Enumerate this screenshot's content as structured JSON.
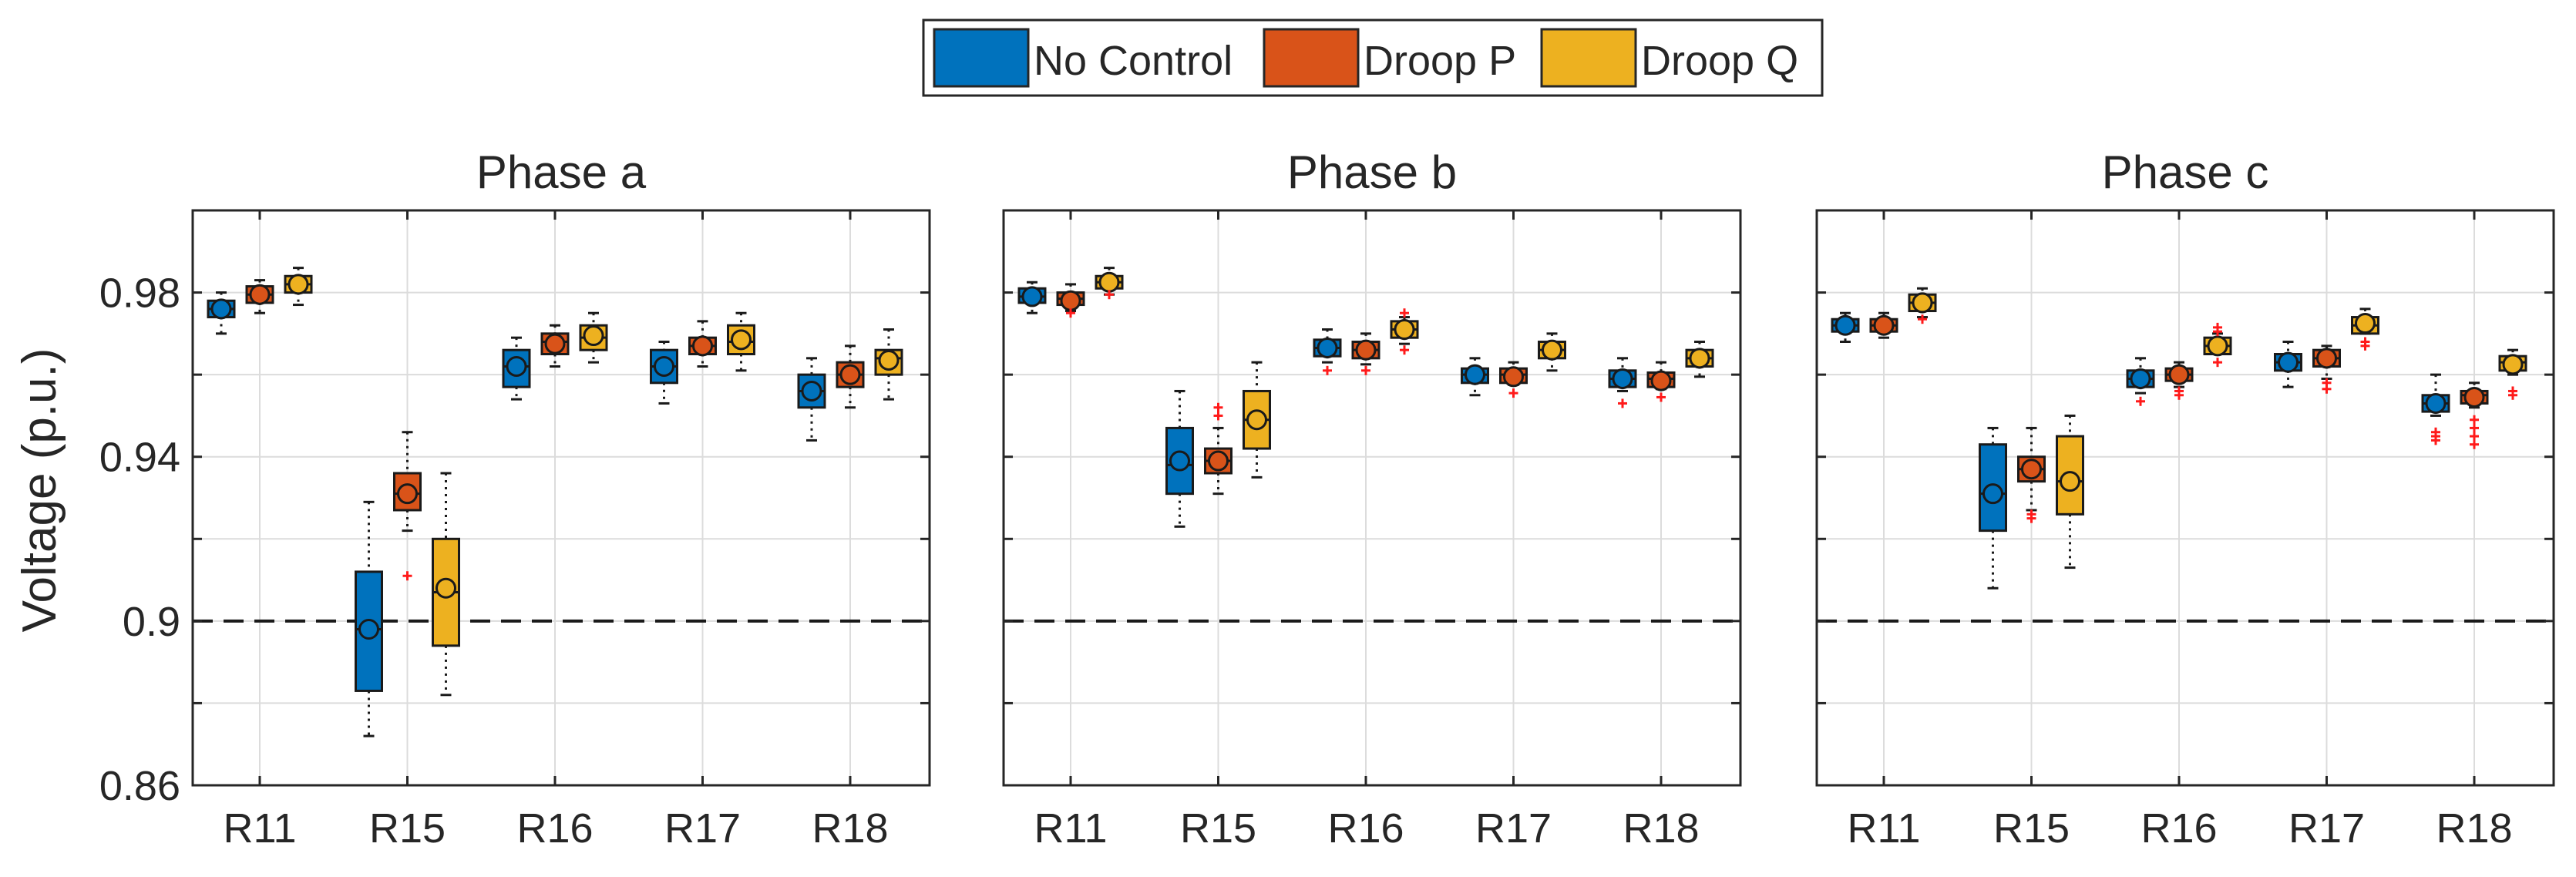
{
  "legend": [
    {
      "label": "No Control",
      "color": "#0072BD"
    },
    {
      "label": "Droop P",
      "color": "#D95319"
    },
    {
      "label": "Droop Q",
      "color": "#EDB120"
    }
  ],
  "threshold_value": 0.9,
  "chart_data": {
    "type": "boxplot",
    "ylabel": "Voltage (p.u.)",
    "ylim": [
      0.86,
      1.0
    ],
    "yticks": [
      0.86,
      0.9,
      0.94,
      0.98
    ],
    "yticklabels": [
      "0.86",
      "0.9",
      "0.94",
      "0.98"
    ],
    "categories": [
      "R11",
      "R15",
      "R16",
      "R17",
      "R18"
    ],
    "series_names": [
      "No Control",
      "Droop P",
      "Droop Q"
    ],
    "panels": [
      {
        "title": "Phase a",
        "boxes": [
          [
            {
              "wlo": 0.97,
              "q1": 0.974,
              "median": 0.976,
              "q3": 0.978,
              "whi": 0.98,
              "mean": 0.976,
              "outliers": []
            },
            {
              "wlo": 0.975,
              "q1": 0.9775,
              "median": 0.9795,
              "q3": 0.9815,
              "whi": 0.983,
              "mean": 0.9795,
              "outliers": []
            },
            {
              "wlo": 0.977,
              "q1": 0.98,
              "median": 0.982,
              "q3": 0.984,
              "whi": 0.986,
              "mean": 0.982,
              "outliers": []
            }
          ],
          [
            {
              "wlo": 0.872,
              "q1": 0.883,
              "median": 0.898,
              "q3": 0.912,
              "whi": 0.929,
              "mean": 0.898,
              "outliers": []
            },
            {
              "wlo": 0.922,
              "q1": 0.927,
              "median": 0.931,
              "q3": 0.936,
              "whi": 0.946,
              "mean": 0.931,
              "outliers": [
                0.911
              ]
            },
            {
              "wlo": 0.882,
              "q1": 0.894,
              "median": 0.907,
              "q3": 0.92,
              "whi": 0.936,
              "mean": 0.908,
              "outliers": []
            }
          ],
          [
            {
              "wlo": 0.954,
              "q1": 0.957,
              "median": 0.962,
              "q3": 0.966,
              "whi": 0.969,
              "mean": 0.962,
              "outliers": []
            },
            {
              "wlo": 0.962,
              "q1": 0.965,
              "median": 0.968,
              "q3": 0.97,
              "whi": 0.972,
              "mean": 0.9675,
              "outliers": []
            },
            {
              "wlo": 0.963,
              "q1": 0.966,
              "median": 0.969,
              "q3": 0.972,
              "whi": 0.975,
              "mean": 0.9695,
              "outliers": []
            }
          ],
          [
            {
              "wlo": 0.953,
              "q1": 0.958,
              "median": 0.962,
              "q3": 0.966,
              "whi": 0.968,
              "mean": 0.962,
              "outliers": []
            },
            {
              "wlo": 0.962,
              "q1": 0.965,
              "median": 0.967,
              "q3": 0.969,
              "whi": 0.973,
              "mean": 0.967,
              "outliers": []
            },
            {
              "wlo": 0.961,
              "q1": 0.965,
              "median": 0.968,
              "q3": 0.972,
              "whi": 0.975,
              "mean": 0.9685,
              "outliers": []
            }
          ],
          [
            {
              "wlo": 0.944,
              "q1": 0.952,
              "median": 0.956,
              "q3": 0.96,
              "whi": 0.964,
              "mean": 0.956,
              "outliers": []
            },
            {
              "wlo": 0.952,
              "q1": 0.957,
              "median": 0.96,
              "q3": 0.963,
              "whi": 0.967,
              "mean": 0.96,
              "outliers": []
            },
            {
              "wlo": 0.954,
              "q1": 0.96,
              "median": 0.964,
              "q3": 0.966,
              "whi": 0.971,
              "mean": 0.9635,
              "outliers": []
            }
          ]
        ]
      },
      {
        "title": "Phase b",
        "boxes": [
          [
            {
              "wlo": 0.975,
              "q1": 0.9775,
              "median": 0.979,
              "q3": 0.981,
              "whi": 0.9825,
              "mean": 0.979,
              "outliers": []
            },
            {
              "wlo": 0.9755,
              "q1": 0.977,
              "median": 0.9785,
              "q3": 0.98,
              "whi": 0.982,
              "mean": 0.978,
              "outliers": [
                0.975
              ]
            },
            {
              "wlo": 0.9795,
              "q1": 0.981,
              "median": 0.9825,
              "q3": 0.984,
              "whi": 0.986,
              "mean": 0.9825,
              "outliers": [
                0.9795
              ]
            }
          ],
          [
            {
              "wlo": 0.923,
              "q1": 0.931,
              "median": 0.938,
              "q3": 0.947,
              "whi": 0.956,
              "mean": 0.939,
              "outliers": []
            },
            {
              "wlo": 0.931,
              "q1": 0.936,
              "median": 0.939,
              "q3": 0.942,
              "whi": 0.947,
              "mean": 0.939,
              "outliers": [
                0.95,
                0.952
              ]
            },
            {
              "wlo": 0.935,
              "q1": 0.942,
              "median": 0.949,
              "q3": 0.956,
              "whi": 0.963,
              "mean": 0.949,
              "outliers": []
            }
          ],
          [
            {
              "wlo": 0.963,
              "q1": 0.9645,
              "median": 0.9665,
              "q3": 0.9685,
              "whi": 0.971,
              "mean": 0.9665,
              "outliers": [
                0.961
              ]
            },
            {
              "wlo": 0.9625,
              "q1": 0.964,
              "median": 0.966,
              "q3": 0.968,
              "whi": 0.97,
              "mean": 0.966,
              "outliers": [
                0.961
              ]
            },
            {
              "wlo": 0.9675,
              "q1": 0.969,
              "median": 0.971,
              "q3": 0.973,
              "whi": 0.974,
              "mean": 0.971,
              "outliers": [
                0.966,
                0.975
              ]
            }
          ],
          [
            {
              "wlo": 0.955,
              "q1": 0.958,
              "median": 0.96,
              "q3": 0.9615,
              "whi": 0.964,
              "mean": 0.96,
              "outliers": []
            },
            {
              "wlo": 0.9575,
              "q1": 0.958,
              "median": 0.96,
              "q3": 0.9615,
              "whi": 0.963,
              "mean": 0.9595,
              "outliers": [
                0.9555
              ]
            },
            {
              "wlo": 0.961,
              "q1": 0.964,
              "median": 0.966,
              "q3": 0.968,
              "whi": 0.97,
              "mean": 0.966,
              "outliers": []
            }
          ],
          [
            {
              "wlo": 0.956,
              "q1": 0.957,
              "median": 0.959,
              "q3": 0.961,
              "whi": 0.964,
              "mean": 0.959,
              "outliers": [
                0.953
              ]
            },
            {
              "wlo": 0.9565,
              "q1": 0.957,
              "median": 0.959,
              "q3": 0.9605,
              "whi": 0.963,
              "mean": 0.9585,
              "outliers": [
                0.9545
              ]
            },
            {
              "wlo": 0.9595,
              "q1": 0.962,
              "median": 0.964,
              "q3": 0.966,
              "whi": 0.968,
              "mean": 0.964,
              "outliers": []
            }
          ]
        ]
      },
      {
        "title": "Phase c",
        "boxes": [
          [
            {
              "wlo": 0.968,
              "q1": 0.9705,
              "median": 0.972,
              "q3": 0.9735,
              "whi": 0.975,
              "mean": 0.972,
              "outliers": []
            },
            {
              "wlo": 0.969,
              "q1": 0.9705,
              "median": 0.972,
              "q3": 0.9735,
              "whi": 0.975,
              "mean": 0.972,
              "outliers": []
            },
            {
              "wlo": 0.974,
              "q1": 0.9755,
              "median": 0.9775,
              "q3": 0.9795,
              "whi": 0.981,
              "mean": 0.9775,
              "outliers": [
                0.9735
              ]
            }
          ],
          [
            {
              "wlo": 0.908,
              "q1": 0.922,
              "median": 0.931,
              "q3": 0.943,
              "whi": 0.947,
              "mean": 0.931,
              "outliers": []
            },
            {
              "wlo": 0.927,
              "q1": 0.934,
              "median": 0.937,
              "q3": 0.94,
              "whi": 0.947,
              "mean": 0.937,
              "outliers": [
                0.925,
                0.926
              ]
            },
            {
              "wlo": 0.913,
              "q1": 0.926,
              "median": 0.934,
              "q3": 0.945,
              "whi": 0.95,
              "mean": 0.934,
              "outliers": []
            }
          ],
          [
            {
              "wlo": 0.9555,
              "q1": 0.957,
              "median": 0.959,
              "q3": 0.961,
              "whi": 0.964,
              "mean": 0.959,
              "outliers": [
                0.9535
              ]
            },
            {
              "wlo": 0.957,
              "q1": 0.9585,
              "median": 0.96,
              "q3": 0.9615,
              "whi": 0.963,
              "mean": 0.96,
              "outliers": [
                0.955,
                0.956
              ]
            },
            {
              "wlo": 0.965,
              "q1": 0.965,
              "median": 0.967,
              "q3": 0.969,
              "whi": 0.97,
              "mean": 0.967,
              "outliers": [
                0.963,
                0.9705,
                0.9715
              ]
            }
          ],
          [
            {
              "wlo": 0.957,
              "q1": 0.961,
              "median": 0.963,
              "q3": 0.965,
              "whi": 0.968,
              "mean": 0.963,
              "outliers": []
            },
            {
              "wlo": 0.959,
              "q1": 0.962,
              "median": 0.964,
              "q3": 0.966,
              "whi": 0.967,
              "mean": 0.964,
              "outliers": [
                0.9565,
                0.958
              ]
            },
            {
              "wlo": 0.97,
              "q1": 0.97,
              "median": 0.972,
              "q3": 0.974,
              "whi": 0.976,
              "mean": 0.9725,
              "outliers": [
                0.967,
                0.968
              ]
            }
          ],
          [
            {
              "wlo": 0.95,
              "q1": 0.951,
              "median": 0.953,
              "q3": 0.955,
              "whi": 0.96,
              "mean": 0.953,
              "outliers": [
                0.944,
                0.945,
                0.946
              ]
            },
            {
              "wlo": 0.952,
              "q1": 0.953,
              "median": 0.955,
              "q3": 0.956,
              "whi": 0.958,
              "mean": 0.9545,
              "outliers": [
                0.943,
                0.945,
                0.947,
                0.949
              ]
            },
            {
              "wlo": 0.96,
              "q1": 0.961,
              "median": 0.963,
              "q3": 0.9645,
              "whi": 0.966,
              "mean": 0.9625,
              "outliers": [
                0.955,
                0.956
              ]
            }
          ]
        ]
      }
    ]
  }
}
